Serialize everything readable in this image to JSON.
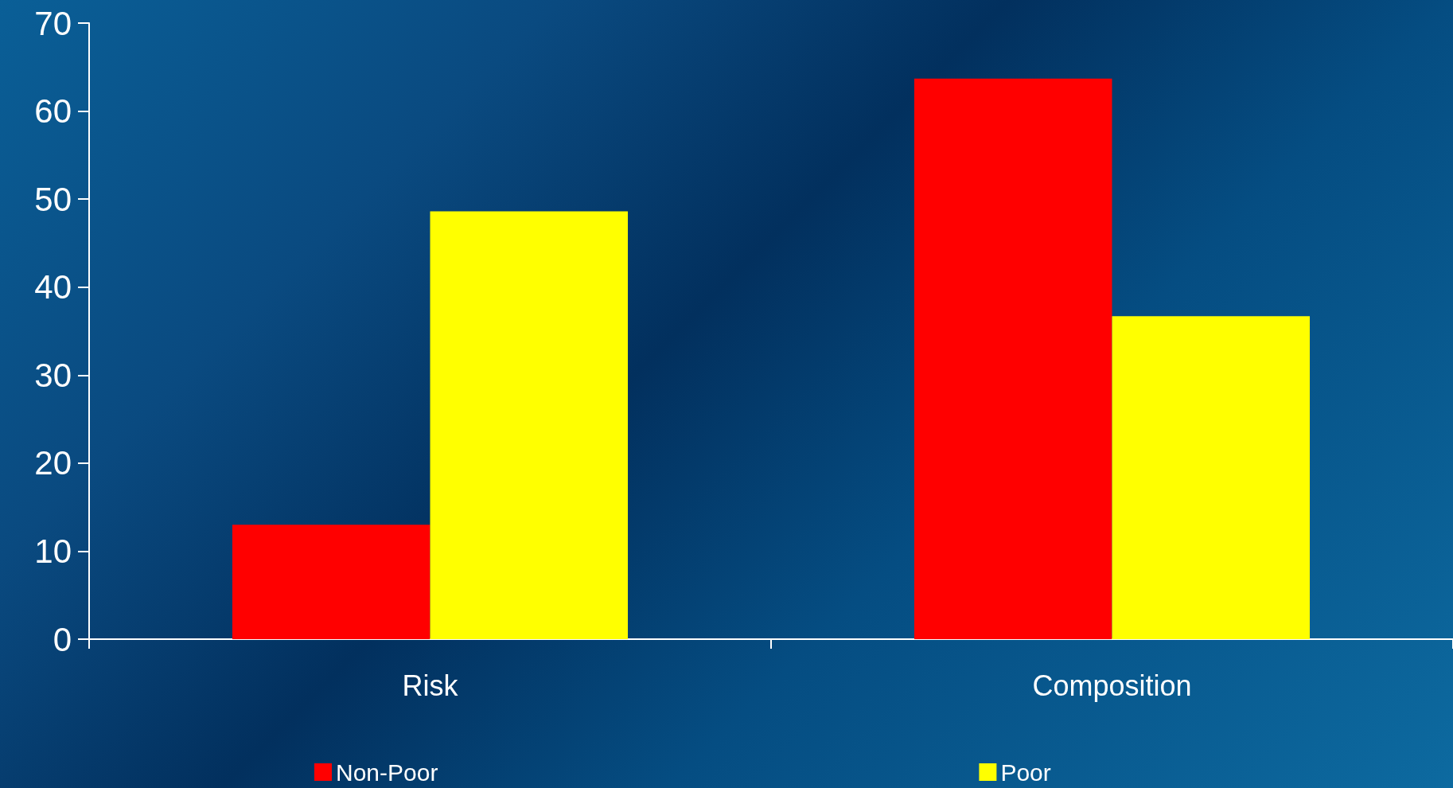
{
  "chart_data": {
    "type": "bar",
    "categories": [
      "Risk",
      "Composition"
    ],
    "series": [
      {
        "name": "Non-Poor",
        "color": "#ff0000",
        "values": [
          13,
          63.7
        ]
      },
      {
        "name": "Poor",
        "color": "#ffff00",
        "values": [
          48.6,
          36.7
        ]
      }
    ],
    "ylim": [
      0,
      70
    ],
    "yticks": [
      0,
      10,
      20,
      30,
      40,
      50,
      60,
      70
    ],
    "grid": false,
    "legend": "bottom"
  }
}
